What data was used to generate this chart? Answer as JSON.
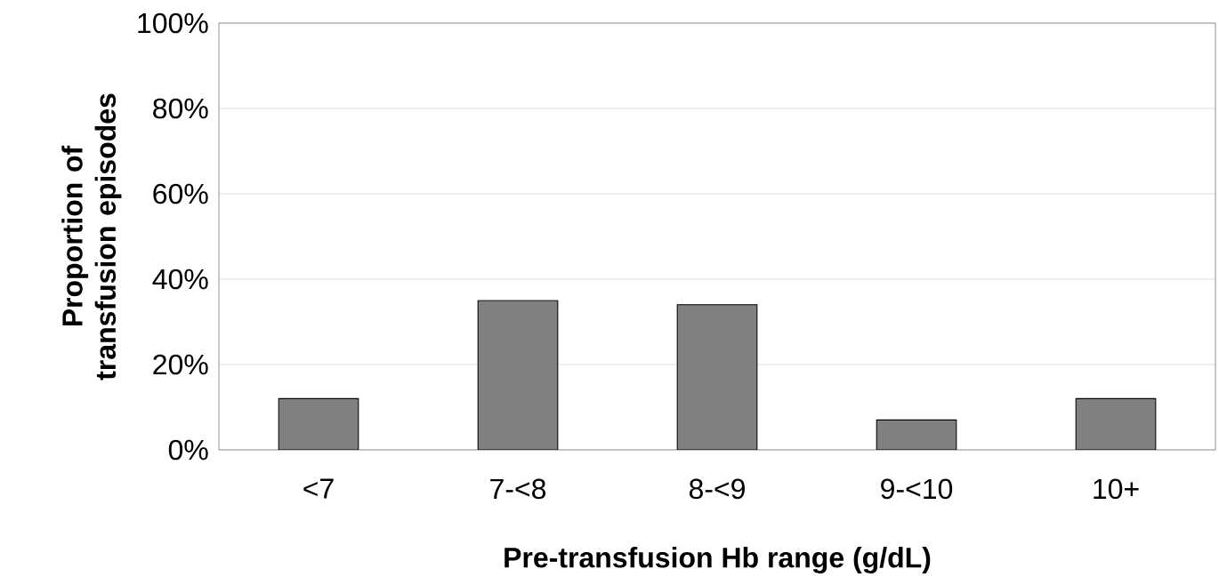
{
  "chart_data": {
    "type": "bar",
    "xlabel": "Pre-transfusion Hb range (g/dL)",
    "ylabel": "Proportion of transfusion episodes",
    "categories": [
      "<7",
      "7-<8",
      "8-<9",
      "9-<10",
      "10+"
    ],
    "values": [
      12,
      35,
      34,
      7,
      12
    ],
    "color": "#808080",
    "ylim": [
      0,
      100
    ],
    "yticks": [
      {
        "value": 0,
        "label": "0%"
      },
      {
        "value": 20,
        "label": "20%"
      },
      {
        "value": 40,
        "label": "40%"
      },
      {
        "value": 60,
        "label": "60%"
      },
      {
        "value": 80,
        "label": "80%"
      },
      {
        "value": 100,
        "label": "100%"
      }
    ],
    "grid": "y"
  }
}
